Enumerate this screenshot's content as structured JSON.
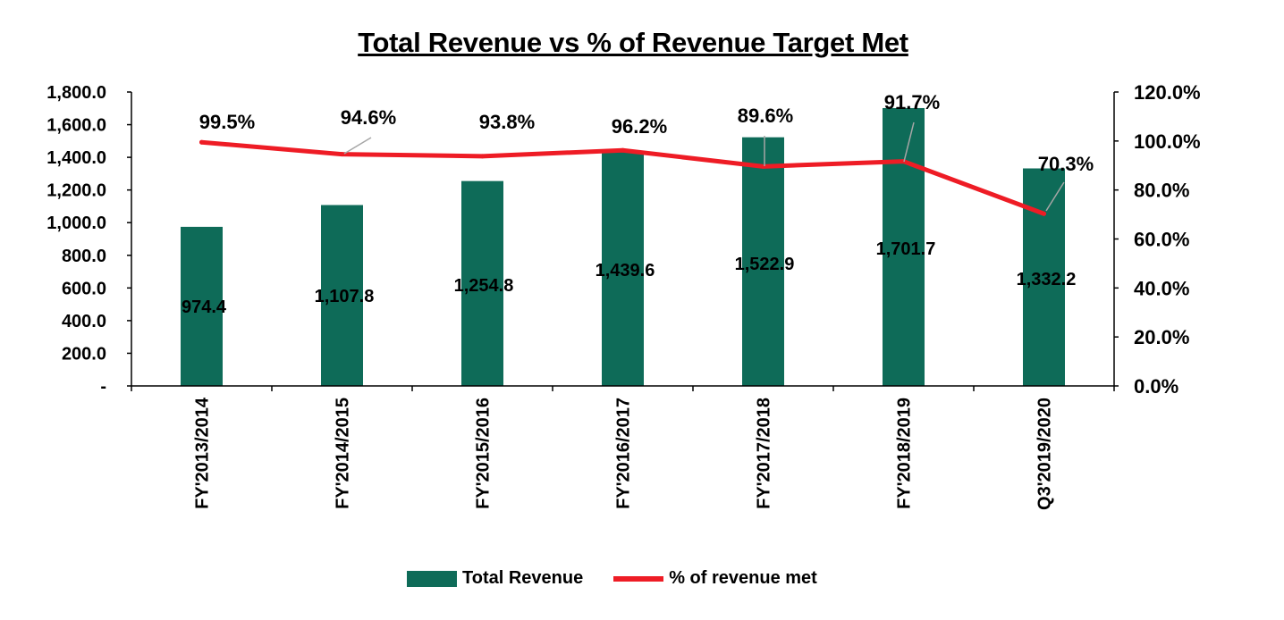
{
  "chart_data": {
    "type": "bar",
    "title": "Total Revenue vs % of Revenue Target Met",
    "categories": [
      "FY'2013/2014",
      "FY'2014/2015",
      "FY'2015/2016",
      "FY'2016/2017",
      "FY'2017/2018",
      "FY'2018/2019",
      "Q3'2019/2020"
    ],
    "series": [
      {
        "name": "Total Revenue",
        "type": "bar",
        "axis": "left",
        "values": [
          974.4,
          1107.8,
          1254.8,
          1439.6,
          1522.9,
          1701.7,
          1332.2
        ],
        "labels": [
          "974.4",
          "1,107.8",
          "1,254.8",
          "1,439.6",
          "1,522.9",
          "1,701.7",
          "1,332.2"
        ],
        "color": "#0e6b58"
      },
      {
        "name": "% of revenue met",
        "type": "line",
        "axis": "right",
        "values": [
          99.5,
          94.6,
          93.8,
          96.2,
          89.6,
          91.7,
          70.3
        ],
        "labels": [
          "99.5%",
          "94.6%",
          "93.8%",
          "96.2%",
          "89.6%",
          "91.7%",
          "70.3%"
        ],
        "color": "#ee1c25"
      }
    ],
    "y_left": {
      "lim": [
        0,
        1800
      ],
      "ticks": [
        "-",
        "200.0",
        "400.0",
        "600.0",
        "800.0",
        "1,000.0",
        "1,200.0",
        "1,400.0",
        "1,600.0",
        "1,800.0"
      ]
    },
    "y_right": {
      "lim": [
        0,
        120
      ],
      "ticks": [
        "0.0%",
        "20.0%",
        "40.0%",
        "60.0%",
        "80.0%",
        "100.0%",
        "120.0%"
      ]
    },
    "legend_position": "bottom",
    "grid": false
  }
}
